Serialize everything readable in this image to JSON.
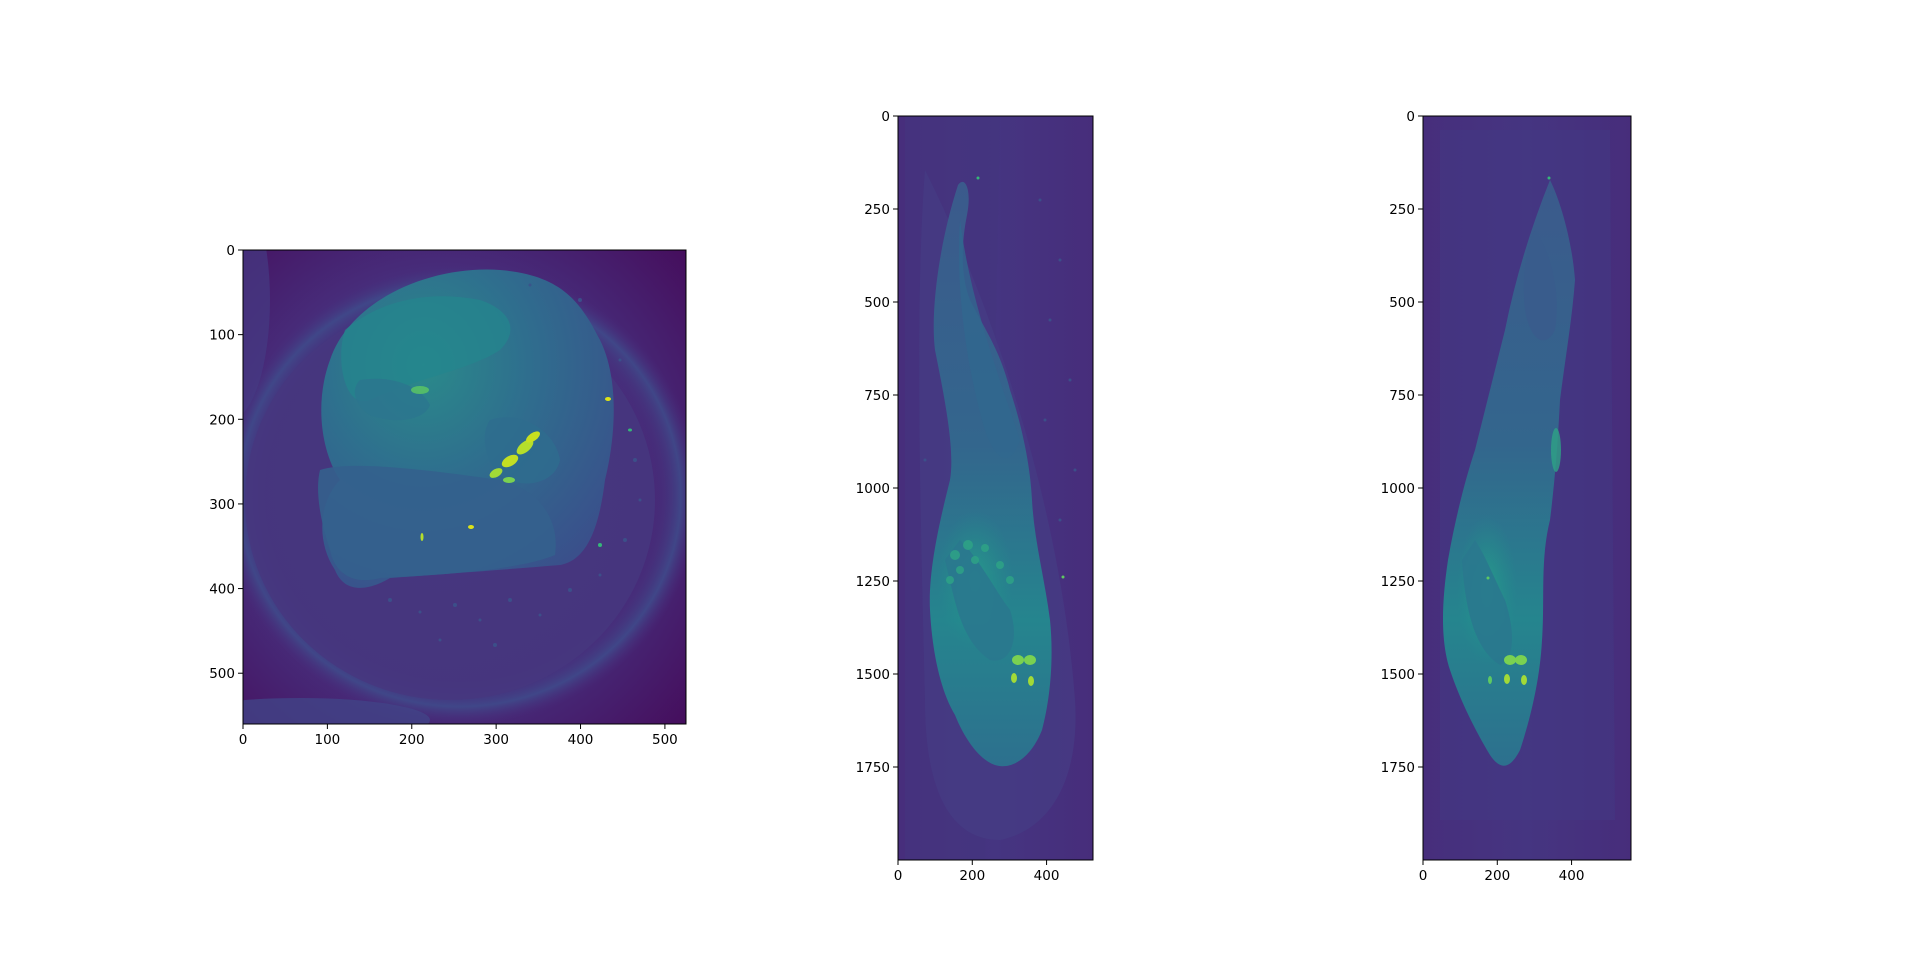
{
  "chart_data": [
    {
      "type": "heatmap",
      "view": "axial-slice",
      "colormap": "viridis",
      "image_extent": {
        "x": [
          0,
          525
        ],
        "y": [
          560,
          0
        ]
      },
      "xlim": [
        0,
        525
      ],
      "ylim": [
        560,
        0
      ],
      "x_ticks": [
        0,
        100,
        200,
        300,
        400,
        500
      ],
      "y_ticks": [
        0,
        100,
        200,
        300,
        400,
        500
      ],
      "x_tick_labels": [
        "0",
        "100",
        "200",
        "300",
        "400",
        "500"
      ],
      "y_tick_labels": [
        "0",
        "100",
        "200",
        "300",
        "400",
        "500"
      ]
    },
    {
      "type": "heatmap",
      "view": "coronal-projection",
      "colormap": "viridis",
      "image_extent": {
        "x": [
          0,
          525
        ],
        "y": [
          2000,
          0
        ]
      },
      "xlim": [
        0,
        525
      ],
      "ylim": [
        2000,
        0
      ],
      "x_ticks": [
        0,
        200,
        400
      ],
      "y_ticks": [
        0,
        250,
        500,
        750,
        1000,
        1250,
        1500,
        1750
      ],
      "x_tick_labels": [
        "0",
        "200",
        "400"
      ],
      "y_tick_labels": [
        "0",
        "250",
        "500",
        "750",
        "1000",
        "1250",
        "1500",
        "1750"
      ]
    },
    {
      "type": "heatmap",
      "view": "sagittal-projection",
      "colormap": "viridis",
      "image_extent": {
        "x": [
          0,
          560
        ],
        "y": [
          2000,
          0
        ]
      },
      "xlim": [
        0,
        560
      ],
      "ylim": [
        2000,
        0
      ],
      "x_ticks": [
        0,
        200,
        400
      ],
      "y_ticks": [
        0,
        250,
        500,
        750,
        1000,
        1250,
        1500,
        1750
      ],
      "x_tick_labels": [
        "0",
        "200",
        "400"
      ],
      "y_tick_labels": [
        "0",
        "250",
        "500",
        "750",
        "1000",
        "1250",
        "1500",
        "1750"
      ]
    }
  ],
  "colors": {
    "viridis_dark": "#440154",
    "viridis_purple": "#472f7d",
    "viridis_blue": "#3b528b",
    "viridis_teal": "#21918c",
    "viridis_green": "#35b779",
    "viridis_yellow": "#bddf26"
  }
}
